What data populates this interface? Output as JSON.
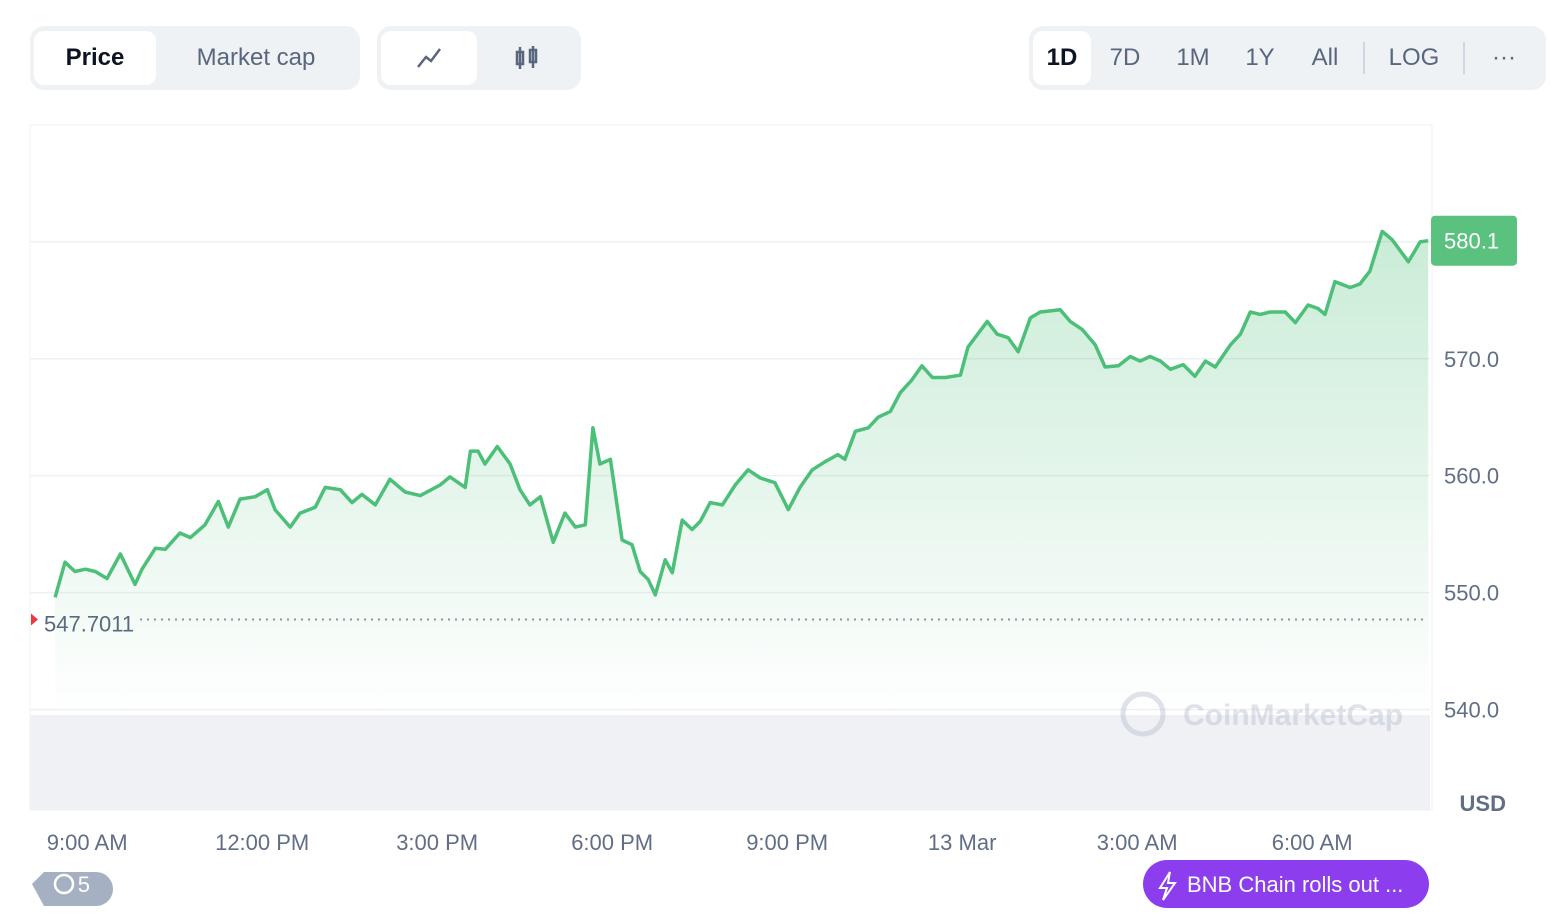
{
  "ui": {
    "tabs": [
      "Price",
      "Market cap"
    ],
    "ranges": [
      "1D",
      "7D",
      "1M",
      "1Y",
      "All"
    ],
    "log": "LOG",
    "more": "···",
    "watermark": "CoinMarketCap",
    "history": "5",
    "news": "BNB Chain rolls out ..."
  },
  "chart_data": {
    "type": "line",
    "y_unit": "USD",
    "color": "#4cbf78",
    "grid": true,
    "xlim": [
      8.02,
      32.02
    ],
    "ylim": [
      531.4,
      590
    ],
    "xticks": [
      {
        "value": 9,
        "label": "9:00 AM"
      },
      {
        "value": 12,
        "label": "12:00 PM"
      },
      {
        "value": 15,
        "label": "3:00 PM"
      },
      {
        "value": 18,
        "label": "6:00 PM"
      },
      {
        "value": 21,
        "label": "9:00 PM"
      },
      {
        "value": 24,
        "label": "13 Mar"
      },
      {
        "value": 27,
        "label": "3:00 AM"
      },
      {
        "value": 30,
        "label": "6:00 AM"
      }
    ],
    "yticks": [
      {
        "value": 540,
        "label": "540.0"
      },
      {
        "value": 550,
        "label": "550.0"
      },
      {
        "value": 560,
        "label": "560.0"
      },
      {
        "value": 570,
        "label": "570.0"
      },
      580
    ],
    "reference": 547.7011,
    "current_price": 580.1,
    "x": [
      8.45,
      8.62,
      8.79,
      8.97,
      9.14,
      9.34,
      9.57,
      9.82,
      9.94,
      10.17,
      10.34,
      10.59,
      10.77,
      11.02,
      11.25,
      11.42,
      11.62,
      11.88,
      12.09,
      12.22,
      12.48,
      12.65,
      12.91,
      13.08,
      13.34,
      13.54,
      13.71,
      13.94,
      14.19,
      14.45,
      14.71,
      15.05,
      15.22,
      15.48,
      15.57,
      15.7,
      15.82,
      16.03,
      16.25,
      16.42,
      16.59,
      16.77,
      16.99,
      17.19,
      17.37,
      17.54,
      17.67,
      17.79,
      17.97,
      18.17,
      18.34,
      18.48,
      18.62,
      18.74,
      18.91,
      19.03,
      19.2,
      19.37,
      19.51,
      19.68,
      19.89,
      20.11,
      20.33,
      20.54,
      20.79,
      21.02,
      21.22,
      21.43,
      21.65,
      21.87,
      21.99,
      22.17,
      22.39,
      22.56,
      22.77,
      22.94,
      23.14,
      23.31,
      23.49,
      23.71,
      23.97,
      24.1,
      24.28,
      24.43,
      24.6,
      24.79,
      24.96,
      25.17,
      25.34,
      25.68,
      25.85,
      26.06,
      26.28,
      26.45,
      26.68,
      26.88,
      27.05,
      27.22,
      27.4,
      27.57,
      27.79,
      27.99,
      28.17,
      28.34,
      28.6,
      28.77,
      28.94,
      29.11,
      29.28,
      29.54,
      29.71,
      29.93,
      30.1,
      30.22,
      30.39,
      30.65,
      30.82,
      30.99,
      31.2,
      31.37,
      31.65,
      31.85,
      31.99
    ],
    "series": [
      {
        "name": "Price",
        "values": [
          549.6,
          552.6,
          551.8,
          552.0,
          551.8,
          551.2,
          553.3,
          550.7,
          552.0,
          553.8,
          553.7,
          555.1,
          554.7,
          555.8,
          557.8,
          555.6,
          558.0,
          558.2,
          558.8,
          557.1,
          555.6,
          556.8,
          557.3,
          559.0,
          558.8,
          557.7,
          558.4,
          557.5,
          559.7,
          558.6,
          558.3,
          559.2,
          559.9,
          559.0,
          562.1,
          562.1,
          561.0,
          562.5,
          561.0,
          558.8,
          557.5,
          558.2,
          554.3,
          556.8,
          555.6,
          555.8,
          564.1,
          561.0,
          561.4,
          554.5,
          554.1,
          551.8,
          551.1,
          549.8,
          552.8,
          551.7,
          556.2,
          555.4,
          556.1,
          557.7,
          557.5,
          559.2,
          560.5,
          559.8,
          559.4,
          557.1,
          559.0,
          560.5,
          561.2,
          561.8,
          561.4,
          563.8,
          564.1,
          565.0,
          565.5,
          567.1,
          568.2,
          569.4,
          568.4,
          568.4,
          568.6,
          571.0,
          572.2,
          573.2,
          572.1,
          571.8,
          570.6,
          573.5,
          574.0,
          574.2,
          573.2,
          572.5,
          571.2,
          569.3,
          569.4,
          570.2,
          569.8,
          570.2,
          569.8,
          569.1,
          569.5,
          568.5,
          569.8,
          569.3,
          571.2,
          572.1,
          574.0,
          573.8,
          574.0,
          574.0,
          573.1,
          574.6,
          574.3,
          573.8,
          576.6,
          576.1,
          576.4,
          577.5,
          580.9,
          580.2,
          578.3,
          580.0,
          580.1
        ]
      }
    ]
  }
}
